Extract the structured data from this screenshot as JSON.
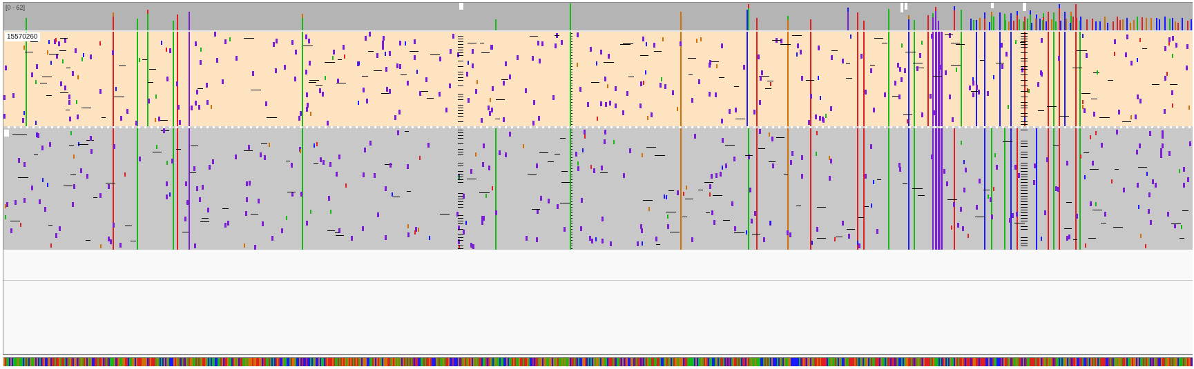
{
  "coverage_track": {
    "range_label": "[0 - 62]",
    "bar_color": "#b4b4b4"
  },
  "alignment": {
    "position_label": "15570260",
    "group_a_color": "#fde3bf",
    "group_b_color": "#c8c8c8"
  },
  "colors": {
    "A": "#18b818",
    "C": "#1a1aff",
    "G": "#d17105",
    "T": "#e02020",
    "insertion": "#7a1fd6",
    "deletion": "#000000"
  },
  "icons": {
    "variant_column": "vertical-line",
    "insertion_marker": "purple-tick"
  }
}
